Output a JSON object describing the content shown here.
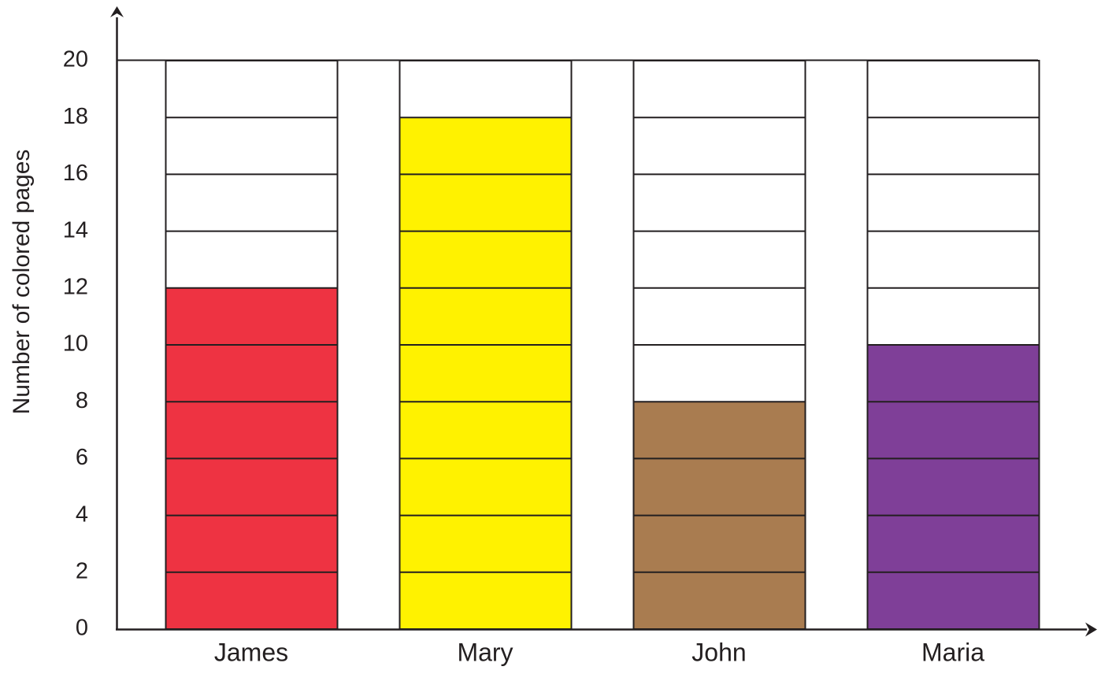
{
  "chart_data": {
    "type": "bar",
    "title": "",
    "xlabel": "",
    "ylabel": "Number of colored pages",
    "categories": [
      "James",
      "Mary",
      "John",
      "Maria"
    ],
    "values": [
      12,
      18,
      8,
      10
    ],
    "ylim": [
      0,
      20
    ],
    "yticks": [
      0,
      2,
      4,
      6,
      8,
      10,
      12,
      14,
      16,
      18,
      20
    ],
    "capacity": 20,
    "segment_size": 2,
    "bar_colors": [
      "#ee3342",
      "#fff200",
      "#a97c50",
      "#7f3f98"
    ],
    "grid": false,
    "legend": "none"
  }
}
